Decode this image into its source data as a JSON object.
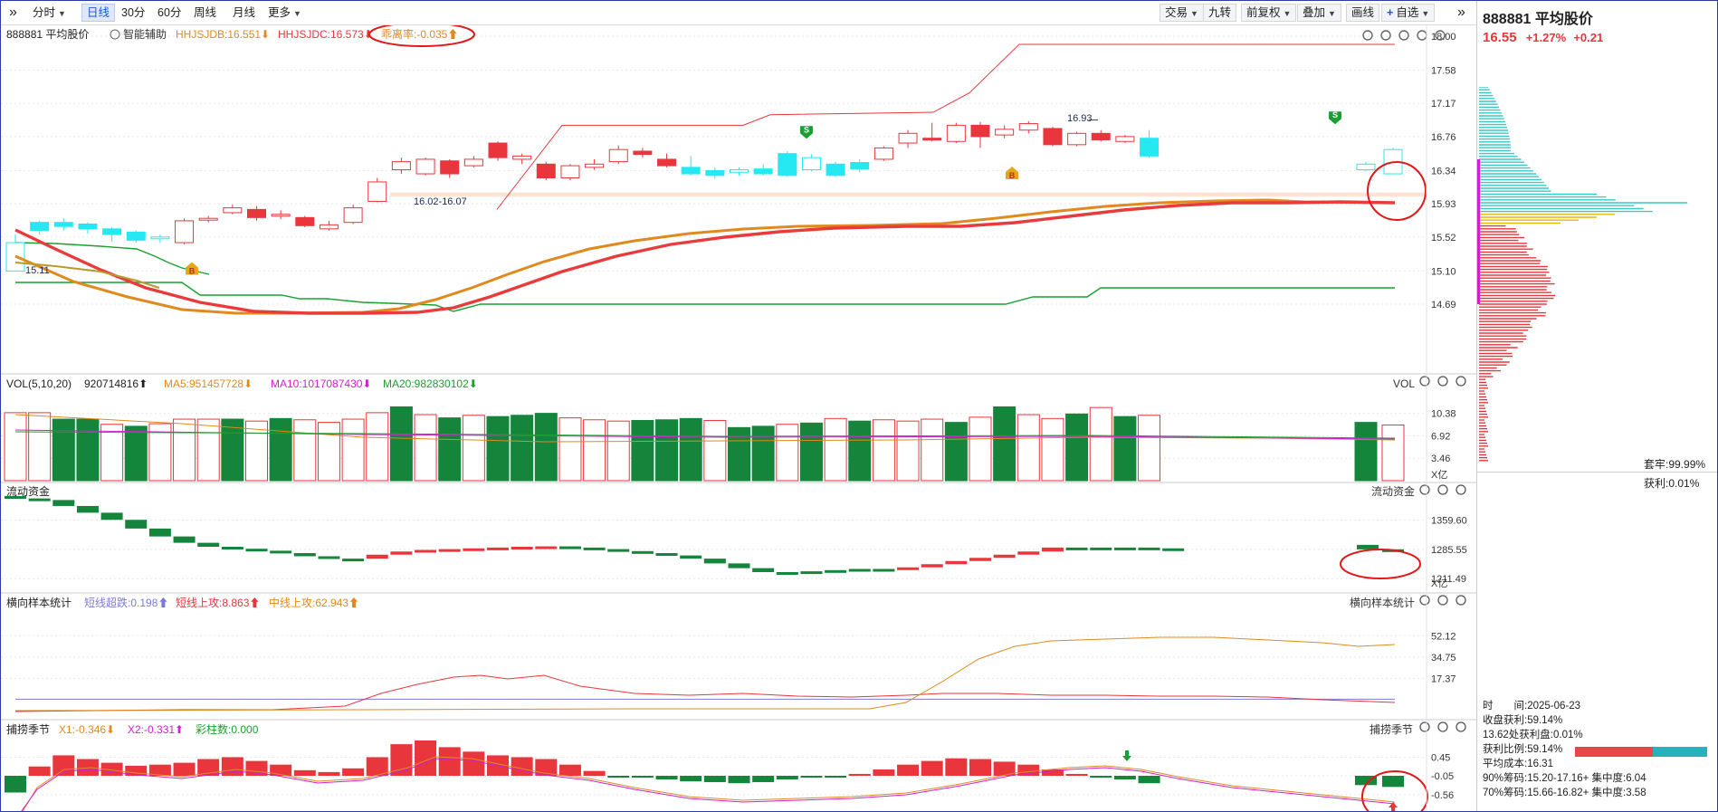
{
  "toolbar": {
    "left_tabs": [
      {
        "label": "分时",
        "dropdown": true
      },
      {
        "label": "日线",
        "selected": true
      },
      {
        "label": "30分"
      },
      {
        "label": "60分"
      },
      {
        "label": "周线"
      },
      {
        "label": "月线"
      },
      {
        "label": "更多",
        "dropdown": true
      }
    ],
    "right_buttons": [
      {
        "label": "交易",
        "dropdown": true
      },
      {
        "label": "九转"
      },
      {
        "label": "前复权",
        "dropdown": true
      },
      {
        "label": "叠加",
        "dropdown": true
      },
      {
        "label": "画线"
      },
      {
        "label": "自选",
        "prefix": "+",
        "dropdown": true
      }
    ]
  },
  "main_pane": {
    "stock_label": "888881 平均股价",
    "assist_label": "智能辅助",
    "ind1": "HHJSJDB:16.551",
    "ind2": "HHJSJDC:16.573",
    "ind3": "乖离率:-0.035",
    "y_ticks": [
      "18.00",
      "17.58",
      "17.17",
      "16.76",
      "16.34",
      "15.93",
      "15.52",
      "15.10",
      "14.69"
    ],
    "annot_range": "16.02-16.07",
    "annot_high": "16.93",
    "annot_low": "15.11",
    "marker_s": "S",
    "marker_b": "B"
  },
  "vol_pane": {
    "label": "VOL(5,10,20)",
    "v": "920714816",
    "ma5": "MA5:951457728",
    "ma10": "MA10:1017087430",
    "ma20": "MA20:982830102",
    "right_label": "VOL",
    "y_ticks": [
      "10.38",
      "6.92",
      "3.46"
    ],
    "unit": "X亿"
  },
  "flow_pane": {
    "label": "流动资金",
    "right_label": "流动资金",
    "y_ticks": [
      "1359.60",
      "1285.55",
      "1211.49"
    ],
    "unit": "X亿"
  },
  "stat_pane": {
    "label": "横向样本统计",
    "i1": "短线超跌:0.198",
    "i2": "短线上攻:8.863",
    "i3": "中线上攻:62.943",
    "right_label": "横向样本统计",
    "y_ticks": [
      "52.12",
      "34.75",
      "17.37"
    ]
  },
  "season_pane": {
    "label": "捕捞季节",
    "x1": "X1:-0.346",
    "x2": "X2:-0.331",
    "bars": "彩柱数:0.000",
    "right_label": "捕捞季节",
    "y_ticks": [
      "0.45",
      "-0.05",
      "-0.56"
    ]
  },
  "right_panel": {
    "code_name": "888881 平均股价",
    "price": "16.55",
    "pct": "+1.27%",
    "chg": "+0.21",
    "trapped": "套牢:99.99%",
    "profit": "获利:0.01%",
    "info": [
      "时　　间:2025-06-23",
      "收盘获利:59.14%",
      "13.62处获利盘:0.01%",
      "获利比例:59.14%",
      "平均成本:16.31",
      "90%筹码:15.20-17.16+ 集中度:6.04",
      "70%筹码:15.66-16.82+ 集中度:3.58"
    ]
  },
  "colors": {
    "up": "#e8363c",
    "down": "#14853a",
    "cyan": "#26e8f2",
    "orange": "#e08a1e",
    "ma_red": "#e83c3c",
    "green_line": "#1aa030",
    "accent": "#1f56d6"
  }
}
